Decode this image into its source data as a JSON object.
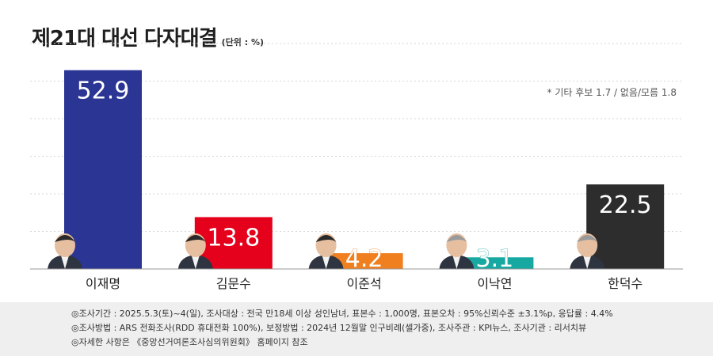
{
  "header": {
    "title": "제21대 대선 다자대결",
    "unit": "(단위 : %)"
  },
  "note": "* 기타 후보 1.7 / 없음/모름 1.8",
  "chart_data": {
    "type": "bar",
    "title": "제21대 대선 다자대결",
    "categories": [
      "이재명",
      "김문수",
      "이준석",
      "이낙연",
      "한덕수"
    ],
    "values": [
      52.9,
      13.8,
      4.2,
      3.1,
      22.5
    ],
    "value_labels": [
      "52.9",
      "13.8",
      "4.2",
      "3.1",
      "22.5"
    ],
    "colors": [
      "#2b3594",
      "#e5001b",
      "#f07f1f",
      "#17a9a1",
      "#2d2d2d"
    ],
    "ylim": [
      0,
      60
    ],
    "grid": true,
    "legend": "none"
  },
  "footer": {
    "lines": [
      "◎조사기간 : 2025.5.3(토)~4(일), 조사대상 : 전국 만18세 이상 성인남녀, 표본수 : 1,000명, 표본오차 : 95%신뢰수준 ±3.1%p, 응답률 : 4.4%",
      "◎조사방법 : ARS 전화조사(RDD 휴대전화 100%), 보정방법 : 2024년 12월말 인구비례(셀가중), 조사주관 : KPI뉴스, 조사기관 : 리서치뷰",
      "◎자세한 사항은 《중앙선거여론조사심의위원회》 홈페이지 참조"
    ]
  }
}
